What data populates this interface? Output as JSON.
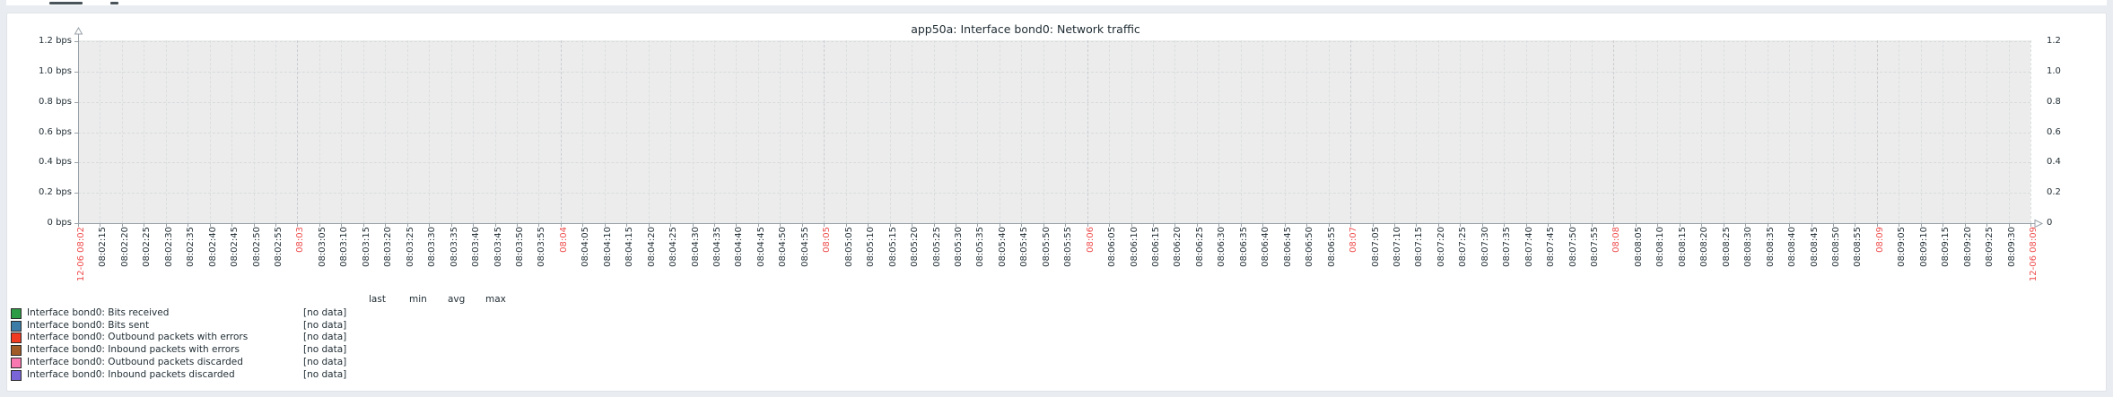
{
  "graph": {
    "legend_header": {
      "last": "last",
      "min": "min",
      "avg": "avg",
      "max": "max"
    }
  },
  "chart_data": {
    "type": "line",
    "title": "app50a: Interface bond0: Network traffic",
    "ylabel": "bps",
    "ylim": [
      0,
      1.2
    ],
    "grid": true,
    "legend_position": "bottom-left",
    "y_ticks_left": [
      "1.2 bps",
      "1.0 bps",
      "0.8 bps",
      "0.6 bps",
      "0.4 bps",
      "0.2 bps",
      "0 bps"
    ],
    "y_ticks_right": [
      "1.2",
      "1.0",
      "0.8",
      "0.6",
      "0.4",
      "0.2",
      "0"
    ],
    "x_ticks": [
      "12-06 08:02",
      "08:02:15",
      "08:02:20",
      "08:02:25",
      "08:02:30",
      "08:02:35",
      "08:02:40",
      "08:02:45",
      "08:02:50",
      "08:02:55",
      "08:03",
      "08:03:05",
      "08:03:10",
      "08:03:15",
      "08:03:20",
      "08:03:25",
      "08:03:30",
      "08:03:35",
      "08:03:40",
      "08:03:45",
      "08:03:50",
      "08:03:55",
      "08:04",
      "08:04:05",
      "08:04:10",
      "08:04:15",
      "08:04:20",
      "08:04:25",
      "08:04:30",
      "08:04:35",
      "08:04:40",
      "08:04:45",
      "08:04:50",
      "08:04:55",
      "08:05",
      "08:05:05",
      "08:05:10",
      "08:05:15",
      "08:05:20",
      "08:05:25",
      "08:05:30",
      "08:05:35",
      "08:05:40",
      "08:05:45",
      "08:05:50",
      "08:05:55",
      "08:06",
      "08:06:05",
      "08:06:10",
      "08:06:15",
      "08:06:20",
      "08:06:25",
      "08:06:30",
      "08:06:35",
      "08:06:40",
      "08:06:45",
      "08:06:50",
      "08:06:55",
      "08:07",
      "08:07:05",
      "08:07:10",
      "08:07:15",
      "08:07:20",
      "08:07:25",
      "08:07:30",
      "08:07:35",
      "08:07:40",
      "08:07:45",
      "08:07:50",
      "08:07:55",
      "08:08",
      "08:08:05",
      "08:08:10",
      "08:08:15",
      "08:08:20",
      "08:08:25",
      "08:08:30",
      "08:08:35",
      "08:08:40",
      "08:08:45",
      "08:08:50",
      "08:08:55",
      "08:09",
      "08:09:05",
      "08:09:10",
      "08:09:15",
      "08:09:20",
      "08:09:25",
      "08:09:30",
      "12-06 08:09"
    ],
    "highlight_color": "#ee4b4b",
    "series": [
      {
        "name": "Interface bond0: Bits received",
        "color": "#2E9B45",
        "last": "[no data]",
        "values": []
      },
      {
        "name": "Interface bond0: Bits sent",
        "color": "#3E7CA8",
        "last": "[no data]",
        "values": []
      },
      {
        "name": "Interface bond0: Outbound packets with errors",
        "color": "#F03B22",
        "last": "[no data]",
        "values": []
      },
      {
        "name": "Interface bond0: Inbound packets with errors",
        "color": "#A05B29",
        "last": "[no data]",
        "values": []
      },
      {
        "name": "Interface bond0: Outbound packets discarded",
        "color": "#F878AF",
        "last": "[no data]",
        "values": []
      },
      {
        "name": "Interface bond0: Inbound packets discarded",
        "color": "#7A65D8",
        "last": "[no data]",
        "values": []
      }
    ]
  }
}
